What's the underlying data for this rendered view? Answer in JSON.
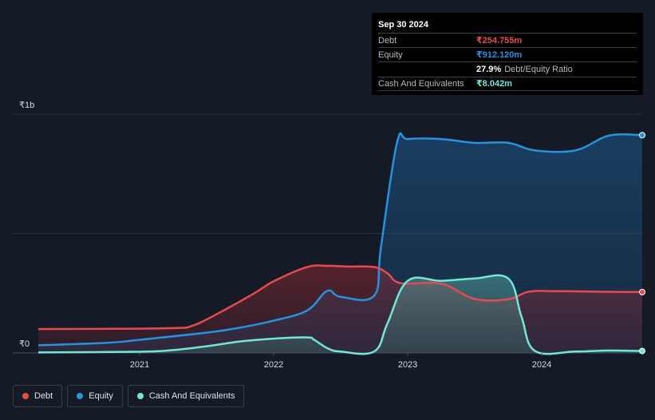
{
  "tooltip": {
    "date": "Sep 30 2024",
    "rows": [
      {
        "label": "Debt",
        "value": "₹254.755m",
        "color": "#e84a4f"
      },
      {
        "label": "Equity",
        "value": "₹912.120m",
        "color": "#2394df"
      },
      {
        "label": "",
        "value": "27.9%",
        "suffix": "Debt/Equity Ratio",
        "color": "#ffffff"
      },
      {
        "label": "Cash And Equivalents",
        "value": "₹8.042m",
        "color": "#71e7d6"
      }
    ]
  },
  "legend": [
    {
      "label": "Debt",
      "color": "#e84a4f"
    },
    {
      "label": "Equity",
      "color": "#2394df"
    },
    {
      "label": "Cash And Equivalents",
      "color": "#71e7d6"
    }
  ],
  "chart_data": {
    "type": "area",
    "y_tick_labels": [
      "₹1b",
      "₹0"
    ],
    "y_ticks": [
      1000,
      0
    ],
    "ylim": [
      0,
      1000
    ],
    "xlim": [
      2020.25,
      2024.75
    ],
    "x_ticks": [
      2021,
      2022,
      2023,
      2024
    ],
    "x_tick_labels": [
      "2021",
      "2022",
      "2023",
      "2024"
    ],
    "grid": true,
    "legend_position": "bottom-left",
    "series": [
      {
        "name": "Debt",
        "color": "#e84a4f",
        "points": [
          [
            2020.2,
            100
          ],
          [
            2020.75,
            101
          ],
          [
            2021.25,
            104
          ],
          [
            2021.4,
            115
          ],
          [
            2021.6,
            170
          ],
          [
            2021.85,
            248
          ],
          [
            2022.0,
            300
          ],
          [
            2022.25,
            360
          ],
          [
            2022.4,
            365
          ],
          [
            2022.55,
            362
          ],
          [
            2022.75,
            360
          ],
          [
            2022.85,
            333
          ],
          [
            2022.95,
            292
          ],
          [
            2023.25,
            290
          ],
          [
            2023.5,
            226
          ],
          [
            2023.75,
            225
          ],
          [
            2023.9,
            256
          ],
          [
            2024.1,
            259
          ],
          [
            2024.5,
            256
          ],
          [
            2024.75,
            255
          ]
        ]
      },
      {
        "name": "Equity",
        "color": "#2394df",
        "points": [
          [
            2020.2,
            32
          ],
          [
            2020.75,
            42
          ],
          [
            2021.0,
            55
          ],
          [
            2021.5,
            85
          ],
          [
            2021.75,
            106
          ],
          [
            2022.0,
            135
          ],
          [
            2022.25,
            178
          ],
          [
            2022.4,
            260
          ],
          [
            2022.5,
            235
          ],
          [
            2022.75,
            240
          ],
          [
            2022.8,
            440
          ],
          [
            2022.92,
            880
          ],
          [
            2023.0,
            896
          ],
          [
            2023.25,
            896
          ],
          [
            2023.5,
            880
          ],
          [
            2023.75,
            880
          ],
          [
            2023.95,
            848
          ],
          [
            2024.25,
            848
          ],
          [
            2024.5,
            910
          ],
          [
            2024.75,
            912
          ]
        ]
      },
      {
        "name": "Cash And Equivalents",
        "color": "#71e7d6",
        "points": [
          [
            2020.2,
            2
          ],
          [
            2021.0,
            5
          ],
          [
            2021.25,
            12
          ],
          [
            2021.5,
            28
          ],
          [
            2021.75,
            48
          ],
          [
            2022.0,
            60
          ],
          [
            2022.25,
            65
          ],
          [
            2022.3,
            56
          ],
          [
            2022.4,
            20
          ],
          [
            2022.5,
            6
          ],
          [
            2022.75,
            6
          ],
          [
            2022.85,
            125
          ],
          [
            2023.0,
            302
          ],
          [
            2023.25,
            302
          ],
          [
            2023.5,
            312
          ],
          [
            2023.75,
            312
          ],
          [
            2023.85,
            150
          ],
          [
            2023.95,
            8
          ],
          [
            2024.25,
            6
          ],
          [
            2024.5,
            10
          ],
          [
            2024.75,
            8
          ]
        ]
      }
    ]
  }
}
